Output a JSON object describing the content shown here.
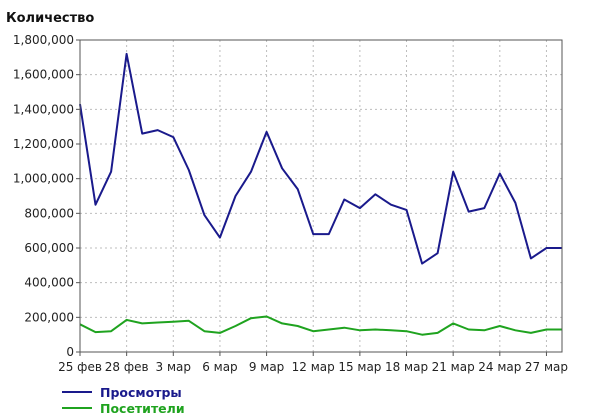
{
  "chart_data": {
    "type": "line",
    "title": "",
    "ylabel": "Количество",
    "xlabel": "",
    "ylim": [
      0,
      1800000
    ],
    "yticks": [
      "0",
      "200,000",
      "400,000",
      "600,000",
      "800,000",
      "1,000,000",
      "1,200,000",
      "1,400,000",
      "1,600,000",
      "1,800,000"
    ],
    "ytick_values": [
      0,
      200000,
      400000,
      600000,
      800000,
      1000000,
      1200000,
      1400000,
      1600000,
      1800000
    ],
    "x": [
      "25 фев",
      "26 фев",
      "27 фев",
      "28 фев",
      "1 мар",
      "2 мар",
      "3 мар",
      "4 мар",
      "5 мар",
      "6 мар",
      "7 мар",
      "8 мар",
      "9 мар",
      "10 мар",
      "11 мар",
      "12 мар",
      "13 мар",
      "14 мар",
      "15 мар",
      "16 мар",
      "17 мар",
      "18 мар",
      "19 мар",
      "20 мар",
      "21 мар",
      "22 мар",
      "23 мар",
      "24 мар",
      "25 мар",
      "26 мар",
      "27 мар",
      "28 мар"
    ],
    "xtick_labels": [
      "25 фев",
      "28 фев",
      "3 мар",
      "6 мар",
      "9 мар",
      "12 мар",
      "15 мар",
      "18 мар",
      "21 мар",
      "24 мар",
      "27 мар"
    ],
    "xtick_indices": [
      0,
      3,
      6,
      9,
      12,
      15,
      18,
      21,
      24,
      27,
      30
    ],
    "grid": true,
    "legend_position": "bottom-left",
    "series": [
      {
        "name": "Просмотры",
        "color": "#1a1a8c",
        "values": [
          1430000,
          850000,
          1040000,
          1720000,
          1260000,
          1280000,
          1240000,
          1050000,
          790000,
          660000,
          900000,
          1040000,
          1270000,
          1060000,
          940000,
          680000,
          680000,
          880000,
          830000,
          910000,
          850000,
          820000,
          510000,
          570000,
          1040000,
          810000,
          830000,
          1030000,
          860000,
          540000,
          600000,
          600000
        ]
      },
      {
        "name": "Посетители",
        "color": "#1fa31f",
        "values": [
          160000,
          115000,
          120000,
          185000,
          165000,
          170000,
          175000,
          180000,
          120000,
          110000,
          150000,
          195000,
          205000,
          165000,
          150000,
          120000,
          130000,
          140000,
          125000,
          130000,
          125000,
          120000,
          100000,
          110000,
          165000,
          130000,
          125000,
          150000,
          125000,
          110000,
          130000,
          130000
        ]
      }
    ]
  }
}
